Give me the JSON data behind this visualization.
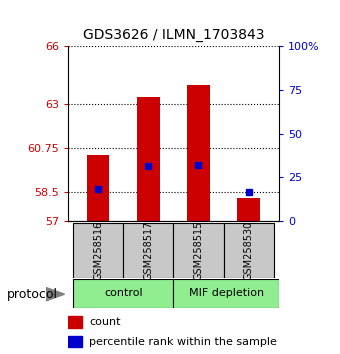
{
  "title": "GDS3626 / ILMN_1703843",
  "samples": [
    "GSM258516",
    "GSM258517",
    "GSM258515",
    "GSM258530"
  ],
  "bar_bottom": 57,
  "bar_tops": [
    60.4,
    63.4,
    64.0,
    58.2
  ],
  "percentile_values": [
    58.65,
    59.85,
    59.9,
    58.5
  ],
  "ylim": [
    57,
    66
  ],
  "yticks_left": [
    57,
    58.5,
    60.75,
    63,
    66
  ],
  "yticks_right_pct": [
    0,
    25,
    50,
    75,
    100
  ],
  "bar_color": "#CC0000",
  "percentile_color": "#0000CC",
  "tick_color_left": "#CC0000",
  "tick_color_right": "#0000CC",
  "sample_box_color": "#C8C8C8",
  "group_box_color": "#90EE90",
  "legend_count_label": "count",
  "legend_percentile_label": "percentile rank within the sample",
  "protocol_label": "protocol",
  "control_label": "control",
  "mif_label": "MIF depletion"
}
